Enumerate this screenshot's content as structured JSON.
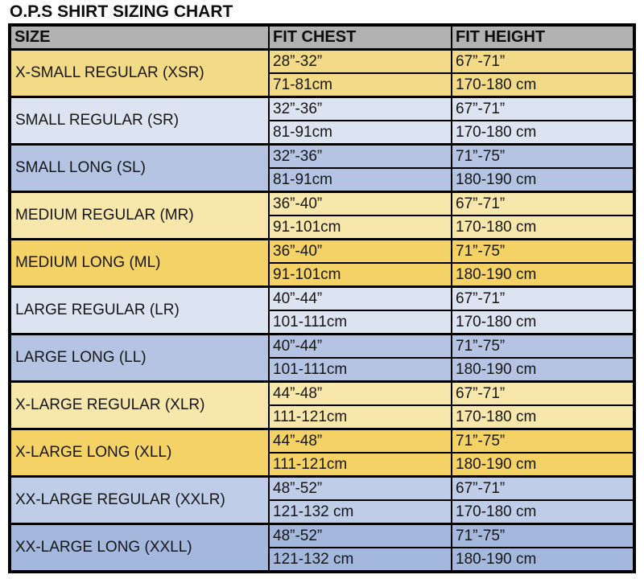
{
  "page": {
    "background": "#ffffff",
    "border_color": "#000000",
    "text_color": "#161616"
  },
  "chart_data": {
    "type": "table",
    "title": "O.P.S SHIRT SIZING CHART",
    "columns": [
      "SIZE",
      "FIT CHEST",
      "FIT HEIGHT"
    ],
    "header_bg": "#b2b2b2",
    "legend_note": "each size has two sub-rows: inches then centimeters",
    "rows": [
      {
        "size": "X-SMALL REGULAR (XSR)",
        "chest_in": "28”-32”",
        "chest_cm": "71-81cm",
        "height_in": "67”-71”",
        "height_cm": "170-180 cm",
        "bg": "#f3da86"
      },
      {
        "size": "SMALL REGULAR (SR)",
        "chest_in": "32”-36”",
        "chest_cm": "81-91cm",
        "height_in": "67”-71”",
        "height_cm": "170-180 cm",
        "bg": "#dce3f1"
      },
      {
        "size": "SMALL LONG (SL)",
        "chest_in": "32”-36”",
        "chest_cm": "81-91cm",
        "height_in": "71”-75”",
        "height_cm": "180-190 cm",
        "bg": "#b6c4e3"
      },
      {
        "size": "MEDIUM REGULAR (MR)",
        "chest_in": "36”-40”",
        "chest_cm": "91-101cm",
        "height_in": "67”-71”",
        "height_cm": "170-180 cm",
        "bg": "#f8e7aa"
      },
      {
        "size": "MEDIUM LONG (ML)",
        "chest_in": "36”-40”",
        "chest_cm": "91-101cm",
        "height_in": "71”-75”",
        "height_cm": "180-190 cm",
        "bg": "#f4d266"
      },
      {
        "size": "LARGE REGULAR (LR)",
        "chest_in": "40”-44”",
        "chest_cm": "101-111cm",
        "height_in": "67”-71”",
        "height_cm": "170-180 cm",
        "bg": "#dce3f1"
      },
      {
        "size": "LARGE LONG (LL)",
        "chest_in": "40”-44”",
        "chest_cm": "101-111cm",
        "height_in": "71”-75”",
        "height_cm": "180-190 cm",
        "bg": "#b6c4e3"
      },
      {
        "size": "X-LARGE REGULAR (XLR)",
        "chest_in": "44”-48”",
        "chest_cm": "111-121cm",
        "height_in": "67”-71”",
        "height_cm": "170-180 cm",
        "bg": "#f8e7aa"
      },
      {
        "size": "X-LARGE LONG (XLL)",
        "chest_in": "44”-48”",
        "chest_cm": "111-121cm",
        "height_in": "71”-75”",
        "height_cm": "180-190 cm",
        "bg": "#f4d266"
      },
      {
        "size": "XX-LARGE REGULAR (XXLR)",
        "chest_in": "48”-52”",
        "chest_cm": "121-132 cm",
        "height_in": "67”-71”",
        "height_cm": "170-180 cm",
        "bg": "#bfcde9"
      },
      {
        "size": "XX-LARGE LONG (XXLL)",
        "chest_in": "48”-52”",
        "chest_cm": "121-132 cm",
        "height_in": "71”-75”",
        "height_cm": "180-190 cm",
        "bg": "#a4b8dd"
      }
    ]
  }
}
